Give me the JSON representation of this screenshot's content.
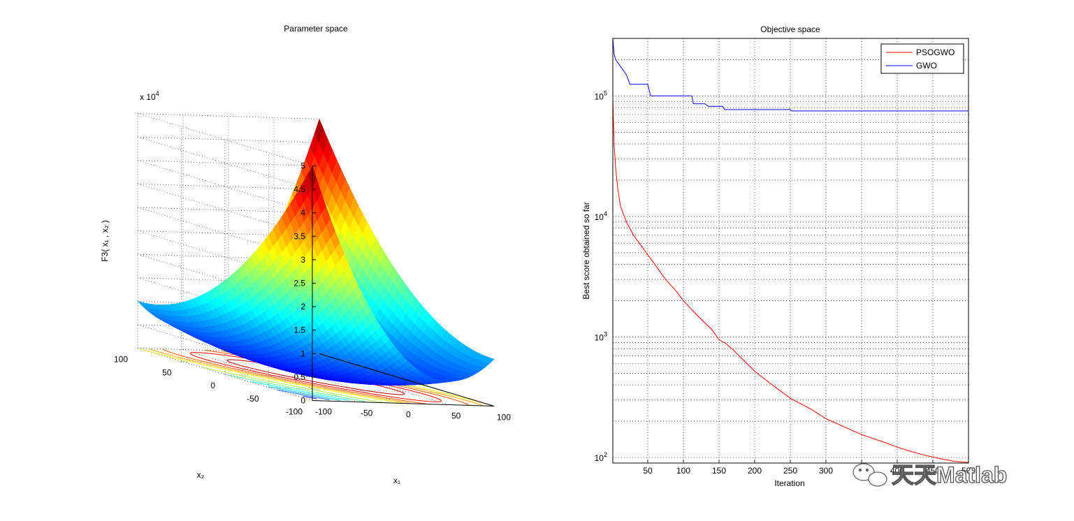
{
  "chart_data": [
    {
      "type": "surface",
      "title": "Parameter space",
      "xlabel": "x₁",
      "ylabel": "x₂",
      "zlabel": "F3( x₁ , x₂ )",
      "z_exponent": "x 10",
      "z_exponent_power": "4",
      "x_range": [
        -100,
        100
      ],
      "y_range": [
        -100,
        100
      ],
      "z_range": [
        0,
        50000
      ],
      "x_ticks": [
        "-100",
        "-50",
        "0",
        "50",
        "100"
      ],
      "y_ticks": [
        "-100",
        "-50",
        "0",
        "50",
        "100"
      ],
      "z_ticks": [
        "0",
        "0.5",
        "1",
        "1.5",
        "2",
        "2.5",
        "3",
        "3.5",
        "4",
        "4.5",
        "5"
      ],
      "colormap": "jet",
      "grid": true,
      "contours_on_base": true
    },
    {
      "type": "line",
      "title": "Objective space",
      "xlabel": "Iteration",
      "ylabel": "Best score obtained so far",
      "yscale": "log",
      "xlim": [
        1,
        500
      ],
      "ylim": [
        90,
        300000
      ],
      "x_ticks": [
        "50",
        "100",
        "150",
        "200",
        "250",
        "300",
        "350",
        "400",
        "450",
        "500"
      ],
      "y_ticks": [
        {
          "base": "10",
          "exp": "2"
        },
        {
          "base": "10",
          "exp": "3"
        },
        {
          "base": "10",
          "exp": "4"
        },
        {
          "base": "10",
          "exp": "5"
        }
      ],
      "grid": true,
      "legend_position": "top-right",
      "series": [
        {
          "name": "PSOGWO",
          "color": "#ff0000",
          "points": [
            [
              1,
              95000
            ],
            [
              2,
              60000
            ],
            [
              3,
              38000
            ],
            [
              5,
              25000
            ],
            [
              8,
              17000
            ],
            [
              12,
              12000
            ],
            [
              20,
              9000
            ],
            [
              30,
              7000
            ],
            [
              40,
              5800
            ],
            [
              50,
              4800
            ],
            [
              60,
              4000
            ],
            [
              75,
              3000
            ],
            [
              90,
              2400
            ],
            [
              100,
              2000
            ],
            [
              120,
              1500
            ],
            [
              140,
              1150
            ],
            [
              150,
              950
            ],
            [
              160,
              880
            ],
            [
              170,
              780
            ],
            [
              180,
              680
            ],
            [
              200,
              520
            ],
            [
              220,
              420
            ],
            [
              250,
              310
            ],
            [
              280,
              250
            ],
            [
              300,
              210
            ],
            [
              330,
              175
            ],
            [
              350,
              155
            ],
            [
              380,
              135
            ],
            [
              400,
              122
            ],
            [
              420,
              112
            ],
            [
              440,
              104
            ],
            [
              460,
              98
            ],
            [
              480,
              93
            ],
            [
              500,
              91
            ]
          ]
        },
        {
          "name": "GWO",
          "color": "#0000ff",
          "points": [
            [
              1,
              300000
            ],
            [
              3,
              220000
            ],
            [
              5,
              200000
            ],
            [
              12,
              175000
            ],
            [
              20,
              150000
            ],
            [
              25,
              125000
            ],
            [
              50,
              125000
            ],
            [
              54,
              100000
            ],
            [
              112,
              100000
            ],
            [
              114,
              86000
            ],
            [
              130,
              86000
            ],
            [
              135,
              82000
            ],
            [
              155,
              82000
            ],
            [
              158,
              77000
            ],
            [
              250,
              77000
            ],
            [
              252,
              75000
            ],
            [
              500,
              75000
            ]
          ]
        }
      ]
    }
  ],
  "watermark": {
    "text": "天天Matlab"
  }
}
